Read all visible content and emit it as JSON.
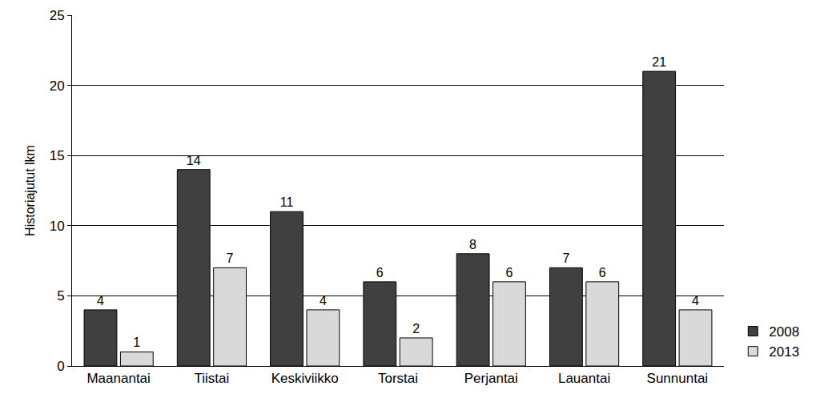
{
  "chart_data": {
    "type": "bar",
    "y_label": "Historiajutut lkm",
    "categories": [
      "Maanantai",
      "Tiistai",
      "Keskiviikko",
      "Torstai",
      "Perjantai",
      "Lauantai",
      "Sunnuntai"
    ],
    "series": [
      {
        "name": "2008",
        "color": "#404040",
        "values": [
          4,
          14,
          11,
          6,
          8,
          7,
          21
        ]
      },
      {
        "name": "2013",
        "color": "#d9d9d9",
        "values": [
          1,
          7,
          4,
          2,
          6,
          6,
          4
        ]
      }
    ],
    "ylim": [
      0,
      25
    ],
    "yticks": [
      0,
      5,
      10,
      15,
      20,
      25
    ],
    "grid": true,
    "data_labels": true,
    "legend": "bottom right"
  }
}
